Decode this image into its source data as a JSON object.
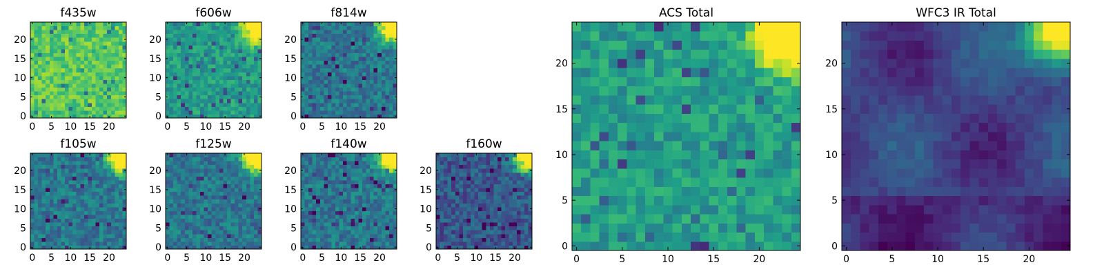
{
  "figure": {
    "description_colormap": "viridis"
  },
  "chart_data": [
    {
      "type": "heatmap",
      "title": "f435w",
      "grid": [
        25,
        25
      ],
      "xticks": [
        0,
        5,
        10,
        15,
        20
      ],
      "yticks": [
        0,
        5,
        10,
        15,
        20
      ],
      "xlim": [
        0,
        25
      ],
      "ylim": [
        0,
        25
      ],
      "pattern": "noisy-bright",
      "hotspot": "none",
      "seed": 11
    },
    {
      "type": "heatmap",
      "title": "f606w",
      "grid": [
        25,
        25
      ],
      "xticks": [
        0,
        5,
        10,
        15,
        20
      ],
      "yticks": [
        0,
        5,
        10,
        15,
        20
      ],
      "xlim": [
        0,
        25
      ],
      "ylim": [
        0,
        25
      ],
      "pattern": "noisy-mid",
      "hotspot": "top-right",
      "seed": 23
    },
    {
      "type": "heatmap",
      "title": "f814w",
      "grid": [
        25,
        25
      ],
      "xticks": [
        0,
        5,
        10,
        15,
        20
      ],
      "yticks": [
        0,
        5,
        10,
        15,
        20
      ],
      "xlim": [
        0,
        25
      ],
      "ylim": [
        0,
        25
      ],
      "pattern": "noisy-dim",
      "hotspot": "top-right",
      "seed": 37
    },
    {
      "type": "heatmap",
      "title": "f105w",
      "grid": [
        25,
        25
      ],
      "xticks": [
        0,
        5,
        10,
        15,
        20
      ],
      "yticks": [
        0,
        5,
        10,
        15,
        20
      ],
      "xlim": [
        0,
        25
      ],
      "ylim": [
        0,
        25
      ],
      "pattern": "noisy-dim",
      "hotspot": "top-right",
      "seed": 41
    },
    {
      "type": "heatmap",
      "title": "f125w",
      "grid": [
        25,
        25
      ],
      "xticks": [
        0,
        5,
        10,
        15,
        20
      ],
      "yticks": [
        0,
        5,
        10,
        15,
        20
      ],
      "xlim": [
        0,
        25
      ],
      "ylim": [
        0,
        25
      ],
      "pattern": "noisy-dim",
      "hotspot": "top-right",
      "seed": 53
    },
    {
      "type": "heatmap",
      "title": "f140w",
      "grid": [
        25,
        25
      ],
      "xticks": [
        0,
        5,
        10,
        15,
        20
      ],
      "yticks": [
        0,
        5,
        10,
        15,
        20
      ],
      "xlim": [
        0,
        25
      ],
      "ylim": [
        0,
        25
      ],
      "pattern": "noisy-dim",
      "hotspot": "top-right",
      "seed": 67
    },
    {
      "type": "heatmap",
      "title": "f160w",
      "grid": [
        25,
        25
      ],
      "xticks": [
        0,
        5,
        10,
        15,
        20
      ],
      "yticks": [
        0,
        5,
        10,
        15,
        20
      ],
      "xlim": [
        0,
        25
      ],
      "ylim": [
        0,
        25
      ],
      "pattern": "noisy-dark",
      "hotspot": "top-right",
      "seed": 79
    },
    {
      "type": "heatmap",
      "title": "ACS Total",
      "grid": [
        25,
        25
      ],
      "xticks": [
        0,
        5,
        10,
        15,
        20
      ],
      "yticks": [
        0,
        5,
        10,
        15,
        20
      ],
      "xlim": [
        0,
        25
      ],
      "ylim": [
        0,
        25
      ],
      "pattern": "noisy-mid",
      "hotspot": "top-right",
      "seed": 97
    },
    {
      "type": "heatmap",
      "title": "WFC3 IR Total",
      "grid": [
        25,
        25
      ],
      "xticks": [
        0,
        5,
        10,
        15,
        20
      ],
      "yticks": [
        0,
        5,
        10,
        15,
        20
      ],
      "xlim": [
        0,
        25
      ],
      "ylim": [
        0,
        25
      ],
      "pattern": "smooth-dark",
      "hotspot": "top-right",
      "seed": 103
    }
  ]
}
